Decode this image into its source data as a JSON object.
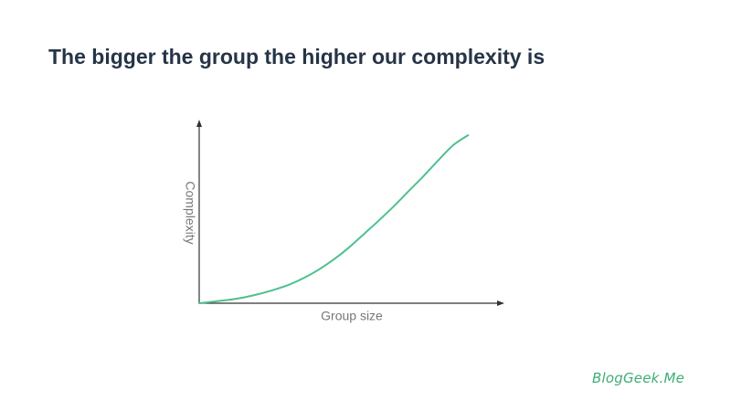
{
  "slide": {
    "title": "The bigger the group the higher our complexity is",
    "logo": "BlogGeek.Me"
  },
  "colors": {
    "title": "#263447",
    "curve": "#4fc08d",
    "axis": "#333333",
    "label": "#777777",
    "logo": "#3dae74"
  },
  "chart_data": {
    "type": "line",
    "title": "",
    "xlabel": "Group size",
    "ylabel": "Complexity",
    "grid": false,
    "axis_ticks": false,
    "series": [
      {
        "x": [
          0,
          0.05,
          0.1,
          0.15,
          0.2,
          0.25,
          0.3,
          0.35,
          0.4,
          0.45,
          0.5,
          0.55,
          0.6,
          0.65,
          0.7,
          0.75,
          0.8,
          0.85,
          0.9
        ],
        "values": [
          0,
          0.01,
          0.02,
          0.035,
          0.055,
          0.08,
          0.11,
          0.15,
          0.2,
          0.26,
          0.33,
          0.41,
          0.49,
          0.575,
          0.665,
          0.755,
          0.85,
          0.94,
          1.0
        ]
      }
    ]
  }
}
